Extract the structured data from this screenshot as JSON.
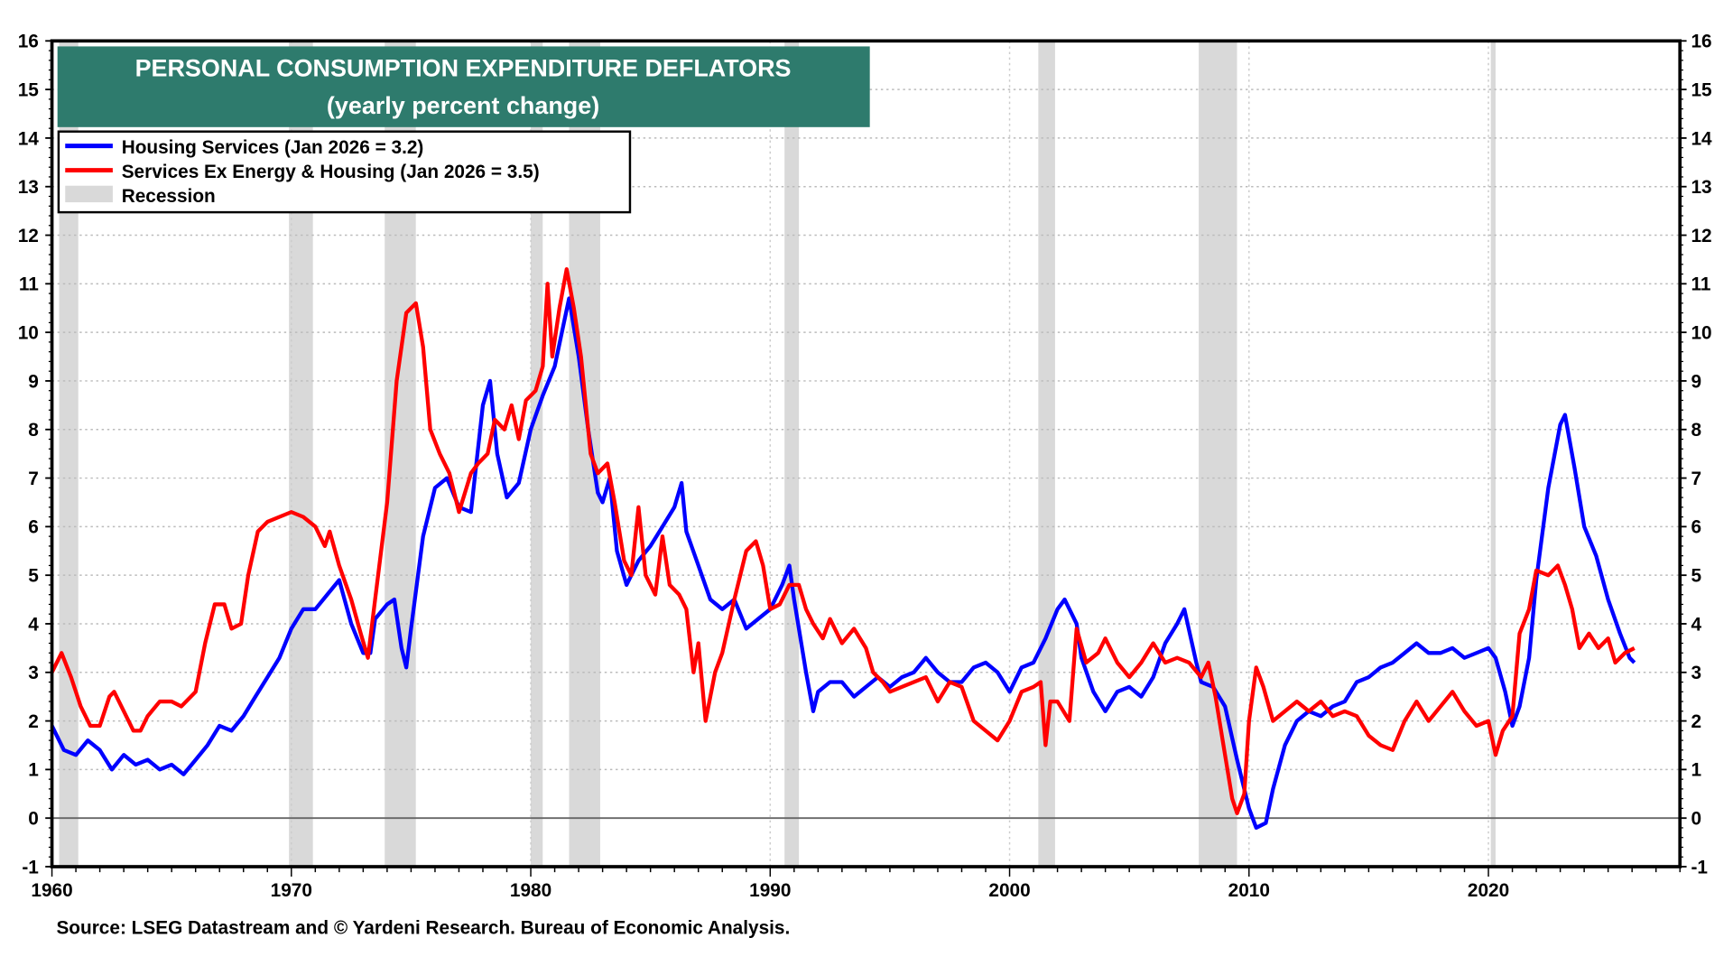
{
  "chart_data": {
    "type": "line",
    "title": "PERSONAL CONSUMPTION EXPENDITURE DEFLATORS",
    "subtitle": "(yearly percent change)",
    "source": "Source: LSEG Datastream and © Yardeni Research. Bureau of Economic Analysis.",
    "xlim": [
      1960,
      2028
    ],
    "ylim": [
      -1,
      16
    ],
    "x_ticks": [
      1960,
      1970,
      1980,
      1990,
      2000,
      2010,
      2020
    ],
    "y_ticks": [
      -1,
      0,
      1,
      2,
      3,
      4,
      5,
      6,
      7,
      8,
      9,
      10,
      11,
      12,
      13,
      14,
      15,
      16
    ],
    "y_axis_both_sides": true,
    "grid": true,
    "legend_placement": "top-left",
    "colors": {
      "housing": "#0000ff",
      "services": "#ff0000",
      "recession": "#d9d9d9",
      "title_bg": "#2e7b6d"
    },
    "recession_label": "Recession",
    "recessions": [
      [
        1960.3,
        1961.1
      ],
      [
        1969.9,
        1970.9
      ],
      [
        1973.9,
        1975.2
      ],
      [
        1980.0,
        1980.5
      ],
      [
        1981.6,
        1982.9
      ],
      [
        1990.6,
        1991.2
      ],
      [
        2001.2,
        2001.9
      ],
      [
        2007.9,
        2009.5
      ],
      [
        2020.1,
        2020.3
      ]
    ],
    "series": [
      {
        "name": "Housing Services (Jan 2026 = 3.2)",
        "color": "#0000ff",
        "x": [
          1960,
          1960.5,
          1961,
          1961.5,
          1962,
          1962.5,
          1963,
          1963.5,
          1964,
          1964.5,
          1965,
          1965.5,
          1966,
          1966.5,
          1967,
          1967.5,
          1968,
          1968.5,
          1969,
          1969.5,
          1970,
          1970.5,
          1971,
          1971.5,
          1972,
          1972.5,
          1973,
          1973.3,
          1973.5,
          1974,
          1974.3,
          1974.6,
          1974.8,
          1975,
          1975.5,
          1976,
          1976.5,
          1977,
          1977.5,
          1978,
          1978.3,
          1978.6,
          1979,
          1979.5,
          1980,
          1980.5,
          1981,
          1981.3,
          1981.6,
          1982,
          1982.4,
          1982.8,
          1983,
          1983.3,
          1983.6,
          1984,
          1984.5,
          1985,
          1985.5,
          1986,
          1986.3,
          1986.5,
          1987,
          1987.5,
          1988,
          1988.5,
          1989,
          1989.5,
          1990,
          1990.5,
          1990.8,
          1991,
          1991.5,
          1991.8,
          1992,
          1992.5,
          1993,
          1993.5,
          1994,
          1994.5,
          1995,
          1995.5,
          1996,
          1996.5,
          1997,
          1997.5,
          1998,
          1998.5,
          1999,
          1999.5,
          2000,
          2000.5,
          2001,
          2001.5,
          2002,
          2002.3,
          2002.8,
          2003,
          2003.5,
          2004,
          2004.5,
          2005,
          2005.5,
          2006,
          2006.5,
          2007,
          2007.3,
          2007.8,
          2008,
          2008.5,
          2009,
          2009.5,
          2010,
          2010.3,
          2010.7,
          2011,
          2011.5,
          2012,
          2012.5,
          2013,
          2013.5,
          2014,
          2014.5,
          2015,
          2015.5,
          2016,
          2016.5,
          2017,
          2017.5,
          2018,
          2018.5,
          2019,
          2019.5,
          2020,
          2020.3,
          2020.7,
          2021,
          2021.3,
          2021.7,
          2022,
          2022.5,
          2023,
          2023.2,
          2023.6,
          2024,
          2024.5,
          2025,
          2025.5,
          2025.9,
          2026.1
        ],
        "y": [
          1.9,
          1.4,
          1.3,
          1.6,
          1.4,
          1.0,
          1.3,
          1.1,
          1.2,
          1.0,
          1.1,
          0.9,
          1.2,
          1.5,
          1.9,
          1.8,
          2.1,
          2.5,
          2.9,
          3.3,
          3.9,
          4.3,
          4.3,
          4.6,
          4.9,
          4.0,
          3.4,
          3.4,
          4.1,
          4.4,
          4.5,
          3.5,
          3.1,
          3.9,
          5.8,
          6.8,
          7.0,
          6.4,
          6.3,
          8.5,
          9.0,
          7.5,
          6.6,
          6.9,
          8.0,
          8.7,
          9.3,
          10.0,
          10.7,
          9.5,
          8.0,
          6.7,
          6.5,
          7.0,
          5.5,
          4.8,
          5.3,
          5.6,
          6.0,
          6.4,
          6.9,
          5.9,
          5.2,
          4.5,
          4.3,
          4.5,
          3.9,
          4.1,
          4.3,
          4.8,
          5.2,
          4.5,
          3.0,
          2.2,
          2.6,
          2.8,
          2.8,
          2.5,
          2.7,
          2.9,
          2.7,
          2.9,
          3.0,
          3.3,
          3.0,
          2.8,
          2.8,
          3.1,
          3.2,
          3.0,
          2.6,
          3.1,
          3.2,
          3.7,
          4.3,
          4.5,
          4.0,
          3.3,
          2.6,
          2.2,
          2.6,
          2.7,
          2.5,
          2.9,
          3.6,
          4.0,
          4.3,
          3.2,
          2.8,
          2.7,
          2.3,
          1.2,
          0.2,
          -0.2,
          -0.1,
          0.6,
          1.5,
          2.0,
          2.2,
          2.1,
          2.3,
          2.4,
          2.8,
          2.9,
          3.1,
          3.2,
          3.4,
          3.6,
          3.4,
          3.4,
          3.5,
          3.3,
          3.4,
          3.5,
          3.3,
          2.6,
          1.9,
          2.3,
          3.3,
          4.9,
          6.8,
          8.1,
          8.3,
          7.2,
          6.0,
          5.4,
          4.5,
          3.8,
          3.3,
          3.2
        ]
      },
      {
        "name": "Services Ex Energy & Housing (Jan 2026 = 3.5)",
        "color": "#ff0000",
        "x": [
          1960,
          1960.4,
          1960.8,
          1961.2,
          1961.6,
          1962,
          1962.4,
          1962.6,
          1963,
          1963.4,
          1963.7,
          1964,
          1964.5,
          1965,
          1965.4,
          1966,
          1966.4,
          1966.8,
          1967.2,
          1967.5,
          1967.9,
          1968.2,
          1968.6,
          1969,
          1969.5,
          1970,
          1970.5,
          1971,
          1971.4,
          1971.6,
          1972,
          1972.5,
          1972.9,
          1973.2,
          1973.5,
          1974,
          1974.4,
          1974.8,
          1975.2,
          1975.5,
          1975.8,
          1976.2,
          1976.6,
          1977,
          1977.5,
          1977.8,
          1978.2,
          1978.5,
          1978.9,
          1979.2,
          1979.5,
          1979.8,
          1980.2,
          1980.5,
          1980.7,
          1980.9,
          1981.2,
          1981.5,
          1981.8,
          1982.1,
          1982.5,
          1982.8,
          1983.2,
          1983.5,
          1983.9,
          1984.2,
          1984.5,
          1984.8,
          1985.2,
          1985.5,
          1985.8,
          1986.2,
          1986.5,
          1986.8,
          1987,
          1987.3,
          1987.7,
          1988,
          1988.5,
          1989,
          1989.4,
          1989.7,
          1990,
          1990.4,
          1990.8,
          1991.2,
          1991.5,
          1991.8,
          1992.2,
          1992.5,
          1993,
          1993.5,
          1994,
          1994.3,
          1994.7,
          1995,
          1995.5,
          1996,
          1996.5,
          1997,
          1997.5,
          1998,
          1998.5,
          1999,
          1999.5,
          2000,
          2000.5,
          2001,
          2001.3,
          2001.5,
          2001.7,
          2002,
          2002.5,
          2002.8,
          2003.2,
          2003.7,
          2004,
          2004.5,
          2005,
          2005.5,
          2006,
          2006.5,
          2007,
          2007.5,
          2008,
          2008.3,
          2008.6,
          2009,
          2009.3,
          2009.5,
          2009.8,
          2010,
          2010.3,
          2010.6,
          2011,
          2011.5,
          2012,
          2012.5,
          2013,
          2013.5,
          2014,
          2014.5,
          2015,
          2015.5,
          2016,
          2016.5,
          2017,
          2017.5,
          2018,
          2018.5,
          2019,
          2019.5,
          2020,
          2020.3,
          2020.6,
          2021,
          2021.3,
          2021.7,
          2022,
          2022.5,
          2022.9,
          2023.2,
          2023.5,
          2023.8,
          2024.2,
          2024.6,
          2025,
          2025.3,
          2025.7,
          2026.1
        ],
        "y": [
          3.0,
          3.4,
          2.9,
          2.3,
          1.9,
          1.9,
          2.5,
          2.6,
          2.2,
          1.8,
          1.8,
          2.1,
          2.4,
          2.4,
          2.3,
          2.6,
          3.6,
          4.4,
          4.4,
          3.9,
          4.0,
          5.0,
          5.9,
          6.1,
          6.2,
          6.3,
          6.2,
          6.0,
          5.6,
          5.9,
          5.2,
          4.5,
          3.8,
          3.3,
          4.5,
          6.5,
          9.0,
          10.4,
          10.6,
          9.7,
          8.0,
          7.5,
          7.1,
          6.3,
          7.1,
          7.3,
          7.5,
          8.2,
          8.0,
          8.5,
          7.8,
          8.6,
          8.8,
          9.3,
          11.0,
          9.5,
          10.5,
          11.3,
          10.5,
          9.5,
          7.5,
          7.1,
          7.3,
          6.5,
          5.3,
          5.0,
          6.4,
          5.0,
          4.6,
          5.8,
          4.8,
          4.6,
          4.3,
          3.0,
          3.6,
          2.0,
          3.0,
          3.4,
          4.5,
          5.5,
          5.7,
          5.2,
          4.3,
          4.4,
          4.8,
          4.8,
          4.3,
          4.0,
          3.7,
          4.1,
          3.6,
          3.9,
          3.5,
          3.0,
          2.8,
          2.6,
          2.7,
          2.8,
          2.9,
          2.4,
          2.8,
          2.7,
          2.0,
          1.8,
          1.6,
          2.0,
          2.6,
          2.7,
          2.8,
          1.5,
          2.4,
          2.4,
          2.0,
          3.9,
          3.2,
          3.4,
          3.7,
          3.2,
          2.9,
          3.2,
          3.6,
          3.2,
          3.3,
          3.2,
          2.9,
          3.2,
          2.5,
          1.3,
          0.4,
          0.1,
          0.5,
          2.0,
          3.1,
          2.7,
          2.0,
          2.2,
          2.4,
          2.2,
          2.4,
          2.1,
          2.2,
          2.1,
          1.7,
          1.5,
          1.4,
          2.0,
          2.4,
          2.0,
          2.3,
          2.6,
          2.2,
          1.9,
          2.0,
          1.3,
          1.8,
          2.1,
          3.8,
          4.3,
          5.1,
          5.0,
          5.2,
          4.8,
          4.3,
          3.5,
          3.8,
          3.5,
          3.7,
          3.2,
          3.4,
          3.5
        ]
      }
    ]
  }
}
